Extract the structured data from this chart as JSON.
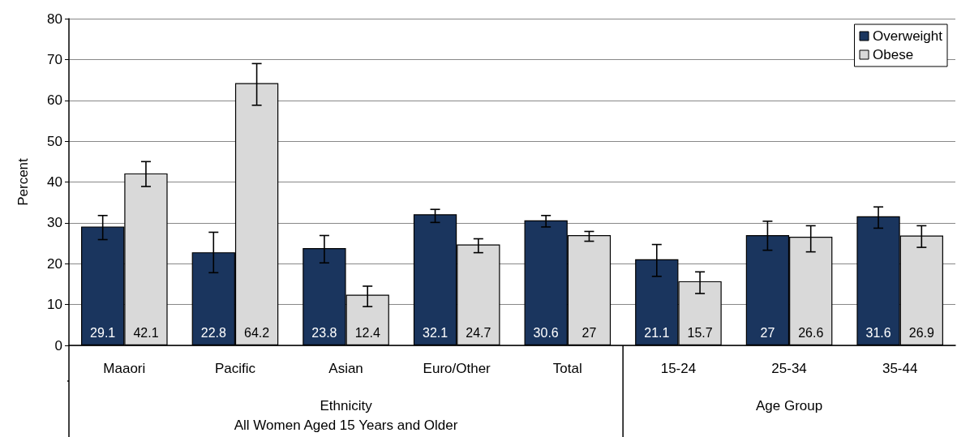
{
  "chart_data": {
    "type": "bar",
    "ylabel": "Percent",
    "categories": [
      "Maaori",
      "Pacific",
      "Asian",
      "Euro/Other",
      "Total",
      "15-24",
      "25-34",
      "35-44"
    ],
    "series": [
      {
        "name": "Overweight",
        "color": "#1a355e",
        "values": [
          29.1,
          22.8,
          23.8,
          32.1,
          30.6,
          21.1,
          27,
          31.6
        ],
        "errors": [
          [
            25.9,
            31.8
          ],
          [
            17.8,
            27.7
          ],
          [
            20.2,
            26.9
          ],
          [
            30.1,
            33.3
          ],
          [
            29.0,
            31.8
          ],
          [
            16.9,
            24.7
          ],
          [
            23.3,
            30.4
          ],
          [
            28.7,
            33.9
          ]
        ]
      },
      {
        "name": "Obese",
        "color": "#d9d9d9",
        "values": [
          42.1,
          64.2,
          12.4,
          24.7,
          27,
          15.7,
          26.6,
          26.9
        ],
        "errors": [
          [
            38.9,
            45.0
          ],
          [
            58.8,
            69.0
          ],
          [
            9.5,
            14.5
          ],
          [
            22.7,
            26.1
          ],
          [
            25.5,
            27.9
          ],
          [
            12.7,
            18.0
          ],
          [
            22.9,
            29.3
          ],
          [
            24.0,
            29.3
          ]
        ]
      }
    ],
    "annotations": [
      "Ethnicity\nAll Women Aged 15 Years and Older",
      "Age Group"
    ],
    "ylim": [
      0,
      80
    ],
    "yticks": [
      0,
      10,
      20,
      30,
      40,
      50,
      60,
      70,
      80
    ],
    "grid": "y",
    "legend": "top right",
    "data_labels": true
  }
}
